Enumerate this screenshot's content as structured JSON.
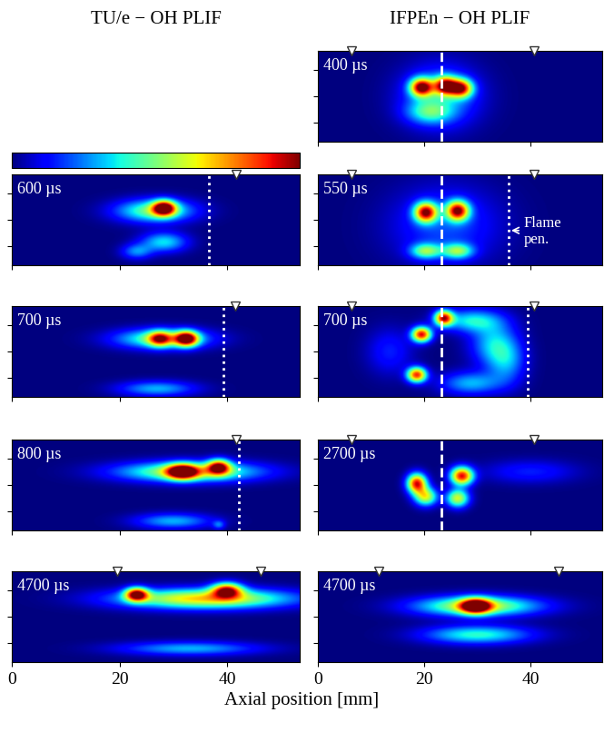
{
  "chart_data": {
    "type": "image_grid",
    "xlabel": "Axial position [mm]",
    "xlim": [
      0,
      53.5
    ],
    "xticks": [
      0,
      20,
      40
    ],
    "ylim": [
      -8.5,
      8.5
    ],
    "yticks": [
      -5,
      0,
      5
    ],
    "tick_labels": "x",
    "colorbar": {
      "range": [
        0,
        1
      ]
    },
    "columns": [
      {
        "title": "TU/e − OH PLIF",
        "panels": [
          null,
          {
            "label": "600 µs",
            "markers": [
              41.7
            ],
            "dashed": [],
            "dotted": [
              36.6
            ],
            "blobs": [
              [
                26.6,
                1.7,
                5.0,
                1.5,
                0.5
              ],
              [
                28.3,
                2.2,
                1.5,
                1.0,
                0.9
              ],
              [
                28.3,
                -4.2,
                3.0,
                1.3,
                0.35
              ],
              [
                23.2,
                -6.0,
                2.0,
                1.0,
                0.25
              ]
            ]
          },
          {
            "label": "700 µs",
            "markers": [
              41.5
            ],
            "dashed": [],
            "dotted": [
              39.3
            ],
            "blobs": [
              [
                28.0,
                2.4,
                6.0,
                1.3,
                0.5
              ],
              [
                32.5,
                2.4,
                1.5,
                1.0,
                0.9
              ],
              [
                27.5,
                2.4,
                1.5,
                1.0,
                0.6
              ],
              [
                27.0,
                -7.0,
                5.0,
                1.0,
                0.3
              ]
            ]
          },
          {
            "label": "800 µs",
            "markers": [
              41.7
            ],
            "dashed": [],
            "dotted": [
              42.2
            ],
            "blobs": [
              [
                33.0,
                2.5,
                9.0,
                1.3,
                0.6
              ],
              [
                31.7,
                2.5,
                2.0,
                1.0,
                0.9
              ],
              [
                38.5,
                3.4,
                1.5,
                1.0,
                0.8
              ],
              [
                30.0,
                -6.8,
                5.0,
                1.0,
                0.3
              ],
              [
                38.5,
                -7.5,
                0.8,
                0.6,
                0.2
              ]
            ]
          },
          {
            "label": "4700 µs",
            "markers": [
              19.5,
              46.3
            ],
            "dashed": [],
            "dotted": [],
            "blobs": [
              [
                36.0,
                3.4,
                11.0,
                1.3,
                0.7
              ],
              [
                23.2,
                4.2,
                1.5,
                0.9,
                0.9
              ],
              [
                40.0,
                5.0,
                2.0,
                1.0,
                0.8
              ],
              [
                33.0,
                -6.0,
                9.0,
                0.9,
                0.3
              ]
            ]
          }
        ]
      },
      {
        "title": "IFPEn − OH PLIF",
        "panels": [
          {
            "label": "400 µs",
            "markers": [
              6.4,
              40.7
            ],
            "dashed": [
              23.2
            ],
            "dotted": [],
            "blobs": [
              [
                19.5,
                1.7,
                1.5,
                1.2,
                0.9
              ],
              [
                24.0,
                2.0,
                1.5,
                1.2,
                0.85
              ],
              [
                27.0,
                1.5,
                1.5,
                1.2,
                0.8
              ],
              [
                23.0,
                0.0,
                5.0,
                4.0,
                0.3
              ],
              [
                21.0,
                -3.0,
                3.0,
                1.5,
                0.3
              ]
            ]
          },
          {
            "label": "550 µs",
            "markers": [
              6.4,
              40.7
            ],
            "dashed": [
              23.2
            ],
            "dotted": [
              35.9
            ],
            "annotation": {
              "text": "Flame\npen.",
              "x": 35.9,
              "y": -2.0
            },
            "blobs": [
              [
                20.3,
                1.4,
                1.5,
                1.3,
                0.9
              ],
              [
                26.3,
                1.7,
                1.5,
                1.3,
                0.9
              ],
              [
                20.3,
                -5.9,
                2.0,
                1.0,
                0.45
              ],
              [
                26.3,
                -5.9,
                2.0,
                1.0,
                0.45
              ],
              [
                24.0,
                -1.0,
                7.0,
                5.0,
                0.2
              ]
            ]
          },
          {
            "label": "700 µs",
            "markers": [
              6.4,
              40.7
            ],
            "dashed": [
              23.2
            ],
            "dotted": [
              39.5
            ],
            "blobs": [
              [
                19.5,
                3.2,
                1.3,
                1.0,
                0.9
              ],
              [
                23.7,
                6.3,
                1.2,
                1.0,
                0.85
              ],
              [
                18.6,
                -4.4,
                1.3,
                1.0,
                0.85
              ],
              [
                28.8,
                5.8,
                4.0,
                1.5,
                0.35
              ],
              [
                33.0,
                1.5,
                3.0,
                3.0,
                0.3
              ],
              [
                28.8,
                -6.0,
                4.0,
                1.5,
                0.3
              ],
              [
                35.6,
                -1.9,
                2.5,
                3.0,
                0.25
              ],
              [
                13.5,
                0.0,
                3.0,
                3.0,
                0.15
              ]
            ]
          },
          {
            "label": "2700 µs",
            "markers": [
              6.4,
              40.7
            ],
            "dashed": [
              23.2
            ],
            "dotted": [],
            "blobs": [
              [
                18.6,
                0.3,
                1.3,
                1.3,
                0.9
              ],
              [
                27.1,
                1.7,
                1.5,
                1.2,
                0.9
              ],
              [
                20.3,
                -2.2,
                1.5,
                1.2,
                0.6
              ],
              [
                26.3,
                -2.5,
                1.5,
                1.2,
                0.6
              ],
              [
                40.0,
                2.5,
                6.0,
                1.5,
                0.15
              ]
            ]
          },
          {
            "label": "4700 µs",
            "markers": [
              11.5,
              45.3
            ],
            "dashed": [],
            "dotted": [],
            "blobs": [
              [
                29.7,
                2.0,
                2.0,
                1.0,
                0.9
              ],
              [
                30.0,
                2.0,
                8.0,
                1.3,
                0.6
              ],
              [
                30.0,
                -3.4,
                7.0,
                1.2,
                0.4
              ]
            ]
          }
        ]
      }
    ]
  }
}
